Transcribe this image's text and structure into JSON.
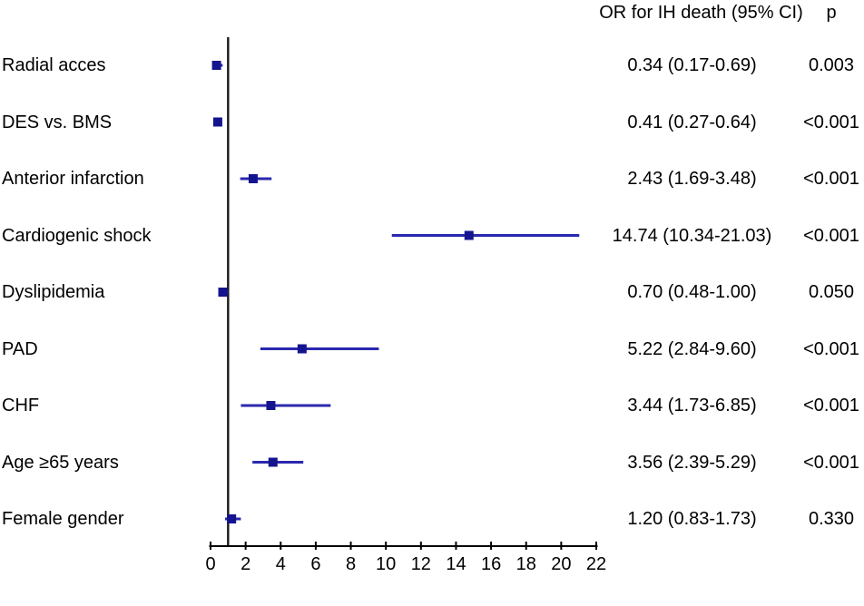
{
  "figure": {
    "background": "#ffffff"
  },
  "chart_data": {
    "type": "forest",
    "title": "",
    "header": {
      "or_col": "OR for IH death (95% CI)",
      "p_col": "p"
    },
    "rows": [
      {
        "label": "Radial acces",
        "or": 0.34,
        "ci_low": 0.17,
        "ci_high": 0.69,
        "or_ci_text": "0.34 (0.17-0.69)",
        "p_text": "0.003"
      },
      {
        "label": "DES vs. BMS",
        "or": 0.41,
        "ci_low": 0.27,
        "ci_high": 0.64,
        "or_ci_text": "0.41 (0.27-0.64)",
        "p_text": "<0.001"
      },
      {
        "label": "Anterior infarction",
        "or": 2.43,
        "ci_low": 1.69,
        "ci_high": 3.48,
        "or_ci_text": "2.43 (1.69-3.48)",
        "p_text": "<0.001"
      },
      {
        "label": "Cardiogenic shock",
        "or": 14.74,
        "ci_low": 10.34,
        "ci_high": 21.03,
        "or_ci_text": "14.74 (10.34-21.03)",
        "p_text": "<0.001"
      },
      {
        "label": "Dyslipidemia",
        "or": 0.7,
        "ci_low": 0.48,
        "ci_high": 1.0,
        "or_ci_text": "0.70 (0.48-1.00)",
        "p_text": "0.050"
      },
      {
        "label": "PAD",
        "or": 5.22,
        "ci_low": 2.84,
        "ci_high": 9.6,
        "or_ci_text": "5.22 (2.84-9.60)",
        "p_text": "<0.001"
      },
      {
        "label": "CHF",
        "or": 3.44,
        "ci_low": 1.73,
        "ci_high": 6.85,
        "or_ci_text": "3.44 (1.73-6.85)",
        "p_text": "<0.001"
      },
      {
        "label": "Age ≥65 years",
        "or": 3.56,
        "ci_low": 2.39,
        "ci_high": 5.29,
        "or_ci_text": "3.56 (2.39-5.29)",
        "p_text": "<0.001"
      },
      {
        "label": "Female gender",
        "or": 1.2,
        "ci_low": 0.83,
        "ci_high": 1.73,
        "or_ci_text": "1.20 (0.83-1.73)",
        "p_text": "0.330"
      }
    ],
    "x_axis": {
      "min": 0,
      "max": 22,
      "ticks": [
        0,
        2,
        4,
        6,
        8,
        10,
        12,
        14,
        16,
        18,
        20,
        22
      ]
    },
    "reference_line_x": 1,
    "legend": "none",
    "grid": "off",
    "colors": {
      "marker_fill": "#14148f",
      "ci_line": "#2a28ad",
      "reference_line": "#1a1a1a",
      "axis": "#000000",
      "text": "#000000"
    }
  }
}
